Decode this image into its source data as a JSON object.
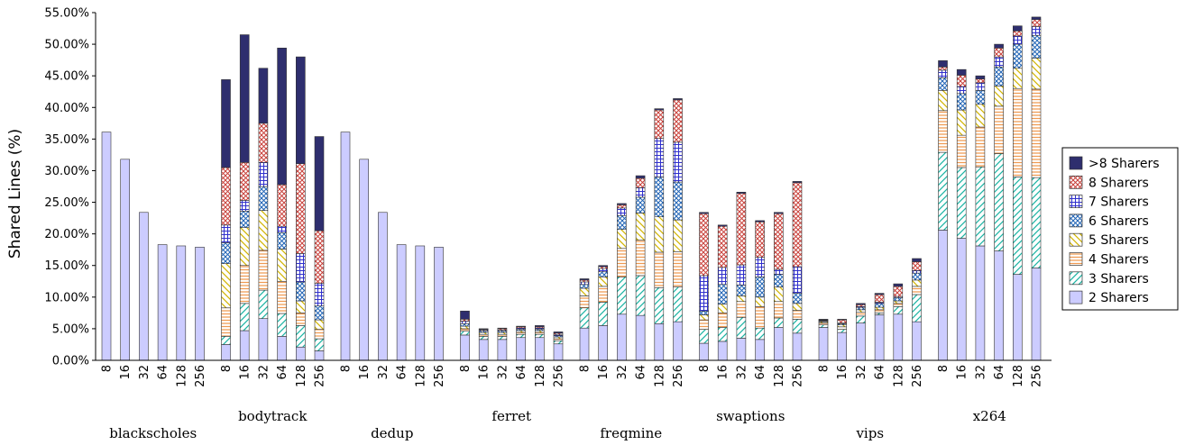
{
  "chart_data": {
    "type": "bar",
    "stacked": true,
    "ylabel": "Shared Lines (%)",
    "ylim": [
      0,
      55
    ],
    "ytick_step": 5,
    "ytick_format": "percent_2dp",
    "grid": false,
    "legend_position": "right",
    "series": [
      {
        "name": "2 Sharers",
        "color": "#ccccff",
        "pattern": "solid"
      },
      {
        "name": "3 Sharers",
        "color": "#1ab3a3",
        "pattern": "diag"
      },
      {
        "name": "4 Sharers",
        "color": "#ef9a52",
        "pattern": "hlines"
      },
      {
        "name": "5 Sharers",
        "color": "#d2b400",
        "pattern": "diag-rev"
      },
      {
        "name": "6 Sharers",
        "color": "#1f63b5",
        "pattern": "xcross"
      },
      {
        "name": "7 Sharers",
        "color": "#3030cc",
        "pattern": "grid"
      },
      {
        "name": "8 Sharers",
        "color": "#c8403a",
        "pattern": "xcross"
      },
      {
        "name": ">8 Sharers",
        "color": "#2e2e6e",
        "pattern": "solid"
      }
    ],
    "legend_order": [
      ">8 Sharers",
      "8 Sharers",
      "7 Sharers",
      "6 Sharers",
      "5 Sharers",
      "4 Sharers",
      "3 Sharers",
      "2 Sharers"
    ],
    "x_ticks": [
      "8",
      "16",
      "32",
      "64",
      "128",
      "256"
    ],
    "benchmarks": [
      {
        "name": "blackscholes",
        "label_row": 2,
        "bars": [
          [
            36.1,
            0,
            0,
            0,
            0,
            0,
            0,
            0
          ],
          [
            31.8,
            0,
            0,
            0,
            0,
            0,
            0,
            0
          ],
          [
            23.4,
            0,
            0,
            0,
            0,
            0,
            0,
            0
          ],
          [
            18.3,
            0,
            0,
            0,
            0,
            0,
            0,
            0
          ],
          [
            18.1,
            0,
            0,
            0,
            0,
            0,
            0,
            0
          ],
          [
            17.9,
            0,
            0,
            0,
            0,
            0,
            0,
            0
          ]
        ]
      },
      {
        "name": "bodytrack",
        "label_row": 1,
        "bars": [
          [
            2.5,
            1.3,
            4.5,
            7.0,
            3.3,
            2.8,
            9.1,
            13.9
          ],
          [
            4.7,
            4.3,
            6.0,
            6.0,
            2.6,
            1.7,
            6.0,
            20.2
          ],
          [
            6.6,
            4.5,
            6.3,
            6.3,
            3.8,
            3.8,
            6.2,
            8.7
          ],
          [
            3.8,
            3.6,
            5.1,
            5.1,
            2.6,
            1.0,
            6.6,
            21.6
          ],
          [
            2.1,
            3.4,
            2.0,
            1.9,
            3.0,
            4.5,
            14.2,
            16.9
          ],
          [
            1.5,
            1.9,
            1.5,
            1.5,
            2.2,
            3.6,
            8.3,
            14.9
          ]
        ]
      },
      {
        "name": "dedup",
        "label_row": 2,
        "bars": [
          [
            36.1,
            0,
            0,
            0,
            0,
            0,
            0,
            0
          ],
          [
            31.8,
            0,
            0,
            0,
            0,
            0,
            0,
            0
          ],
          [
            23.4,
            0,
            0,
            0,
            0,
            0,
            0,
            0
          ],
          [
            18.3,
            0,
            0,
            0,
            0,
            0,
            0,
            0
          ],
          [
            18.1,
            0,
            0,
            0,
            0,
            0,
            0,
            0
          ],
          [
            17.9,
            0,
            0,
            0,
            0,
            0,
            0,
            0
          ]
        ]
      },
      {
        "name": "ferret",
        "label_row": 1,
        "bars": [
          [
            4.0,
            0.6,
            0.4,
            0.4,
            0.4,
            0.4,
            0.3,
            1.3
          ],
          [
            3.3,
            0.5,
            0.3,
            0.3,
            0.2,
            0.2,
            0.1,
            0.1
          ],
          [
            3.3,
            0.5,
            0.3,
            0.3,
            0.2,
            0.2,
            0.2,
            0.1
          ],
          [
            3.6,
            0.5,
            0.3,
            0.3,
            0.2,
            0.2,
            0.2,
            0.1
          ],
          [
            3.6,
            0.5,
            0.3,
            0.3,
            0.2,
            0.2,
            0.2,
            0.2
          ],
          [
            2.6,
            0.5,
            0.3,
            0.3,
            0.2,
            0.2,
            0.2,
            0.2
          ]
        ]
      },
      {
        "name": "freqmine",
        "label_row": 2,
        "bars": [
          [
            5.1,
            3.2,
            1.9,
            1.2,
            0.6,
            0.4,
            0.3,
            0.2
          ],
          [
            5.5,
            3.7,
            2.5,
            1.5,
            0.8,
            0.5,
            0.3,
            0.2
          ],
          [
            7.3,
            5.9,
            4.5,
            3.0,
            2.2,
            1.2,
            0.5,
            0.2
          ],
          [
            7.1,
            6.3,
            5.6,
            4.3,
            2.5,
            1.5,
            1.5,
            0.4
          ],
          [
            5.8,
            5.7,
            5.6,
            5.6,
            6.3,
            6.1,
            4.5,
            0.2
          ],
          [
            6.1,
            5.5,
            5.6,
            5.0,
            6.0,
            6.3,
            6.7,
            0.2
          ]
        ]
      },
      {
        "name": "swaptions",
        "label_row": 1,
        "bars": [
          [
            2.7,
            2.2,
            1.5,
            0.8,
            0.6,
            5.6,
            9.8,
            0.2
          ],
          [
            3.0,
            2.2,
            2.3,
            1.4,
            3.1,
            2.7,
            6.5,
            0.2
          ],
          [
            3.5,
            3.3,
            2.5,
            0.9,
            1.7,
            3.2,
            11.3,
            0.2
          ],
          [
            3.3,
            1.8,
            3.4,
            1.5,
            3.2,
            3.1,
            5.6,
            0.2
          ],
          [
            5.2,
            1.5,
            2.6,
            2.3,
            2.0,
            0.8,
            8.8,
            0.2
          ],
          [
            4.3,
            2.2,
            1.4,
            1.1,
            1.6,
            4.2,
            13.3,
            0.2
          ]
        ]
      },
      {
        "name": "vips",
        "label_row": 2,
        "bars": [
          [
            5.2,
            0.4,
            0.3,
            0.2,
            0.1,
            0.1,
            0.1,
            0.1
          ],
          [
            4.4,
            0.5,
            0.4,
            0.3,
            0.2,
            0.1,
            0.5,
            0.1
          ],
          [
            5.9,
            1.1,
            0.6,
            0.4,
            0.3,
            0.2,
            0.3,
            0.2
          ],
          [
            7.2,
            0.3,
            0.5,
            0.4,
            0.6,
            0.2,
            1.2,
            0.2
          ],
          [
            7.3,
            1.2,
            0.5,
            0.4,
            0.5,
            0.2,
            1.6,
            0.4
          ],
          [
            6.1,
            4.3,
            1.3,
            1.0,
            1.1,
            0.4,
            1.4,
            0.5
          ]
        ]
      },
      {
        "name": "x264",
        "label_row": 1,
        "bars": [
          [
            20.6,
            12.3,
            6.6,
            3.2,
            2.0,
            1.2,
            0.5,
            1.0
          ],
          [
            19.3,
            11.2,
            5.1,
            4.0,
            2.6,
            1.1,
            1.8,
            0.9
          ],
          [
            18.1,
            12.5,
            6.3,
            3.6,
            2.2,
            1.2,
            0.6,
            0.5
          ],
          [
            17.3,
            15.4,
            7.5,
            3.2,
            3.0,
            1.6,
            1.4,
            0.6
          ],
          [
            13.6,
            15.4,
            14.0,
            3.2,
            3.8,
            1.3,
            0.8,
            0.8
          ],
          [
            14.6,
            14.3,
            14.0,
            4.9,
            3.6,
            1.4,
            1.1,
            0.4
          ]
        ]
      }
    ]
  }
}
